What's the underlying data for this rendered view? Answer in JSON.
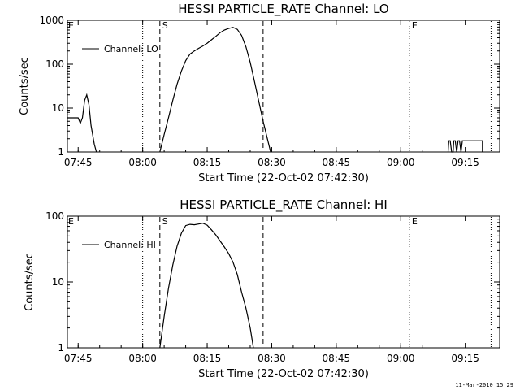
{
  "chart_data": [
    {
      "type": "line",
      "title": "HESSI PARTICLE_RATE Channel: LO",
      "xlabel": "Start Time (22-Oct-02 07:42:30)",
      "ylabel": "Counts/sec",
      "yscale": "log",
      "ylim": [
        1,
        1000
      ],
      "xlim": [
        "07:42:30",
        "09:23:00"
      ],
      "ytick_values": [
        1,
        10,
        100,
        1000
      ],
      "ytick_labels": [
        "1",
        "10",
        "100",
        "1000"
      ],
      "xtick_labels": [
        "07:45",
        "08:00",
        "08:15",
        "08:30",
        "08:45",
        "09:00",
        "09:15"
      ],
      "legend": {
        "label": "Channel: LO",
        "position": "top-left"
      },
      "markers": [
        {
          "time": "08:00",
          "style": "dotted",
          "label": ""
        },
        {
          "time": "08:04",
          "style": "dashed",
          "label": "S"
        },
        {
          "time": "08:28",
          "style": "dashed",
          "label": ""
        },
        {
          "time": "09:02",
          "style": "dotted",
          "label": "E"
        },
        {
          "time": "09:21",
          "style": "dotted",
          "label": ""
        }
      ],
      "corner_label": "E",
      "series": [
        {
          "x": [
            "07:42:30",
            "07:44:00",
            "07:45:00",
            "07:45:30",
            "07:46:00",
            "07:46:30",
            "07:47:00",
            "07:47:30",
            "07:48:00",
            "07:48:45",
            "07:49:15"
          ],
          "y": [
            6,
            6,
            6,
            4.5,
            6,
            15,
            20,
            12,
            4,
            1.5,
            1
          ]
        },
        {
          "x": [
            "08:04:00",
            "08:05:00",
            "08:06:00",
            "08:07:00",
            "08:08:00",
            "08:09:00",
            "08:10:00",
            "08:11:00",
            "08:12:00",
            "08:13:00",
            "08:14:00",
            "08:15:00",
            "08:16:00",
            "08:17:00",
            "08:18:00",
            "08:19:00",
            "08:20:00",
            "08:21:00",
            "08:22:00",
            "08:23:00",
            "08:24:00",
            "08:25:00",
            "08:26:00",
            "08:27:00",
            "08:28:00",
            "08:29:00",
            "08:29:45"
          ],
          "y": [
            1,
            2.5,
            6,
            15,
            35,
            70,
            120,
            170,
            200,
            230,
            260,
            300,
            360,
            430,
            520,
            600,
            650,
            690,
            620,
            450,
            250,
            110,
            40,
            14,
            5,
            2,
            1
          ]
        },
        {
          "x": [
            "09:11:00",
            "09:11:10",
            "09:11:30",
            "09:11:50",
            "09:12:10",
            "09:12:20",
            "09:12:40",
            "09:13:00",
            "09:13:20",
            "09:13:40",
            "09:14:00",
            "09:14:20",
            "09:14:40",
            "09:15:00",
            "09:17:00",
            "09:19:00",
            "09:19:00"
          ],
          "y": [
            1,
            1.8,
            1.8,
            1,
            1,
            1.8,
            1.8,
            1,
            1.8,
            1.8,
            1,
            1.8,
            1.8,
            1.8,
            1.8,
            1.8,
            1
          ]
        }
      ]
    },
    {
      "type": "line",
      "title": "HESSI PARTICLE_RATE Channel: HI",
      "xlabel": "Start Time (22-Oct-02 07:42:30)",
      "ylabel": "Counts/sec",
      "yscale": "log",
      "ylim": [
        1,
        100
      ],
      "xlim": [
        "07:42:30",
        "09:23:00"
      ],
      "ytick_values": [
        1,
        10,
        100
      ],
      "ytick_labels": [
        "1",
        "10",
        "100"
      ],
      "xtick_labels": [
        "07:45",
        "08:00",
        "08:15",
        "08:30",
        "08:45",
        "09:00",
        "09:15"
      ],
      "legend": {
        "label": "Channel: HI",
        "position": "top-left"
      },
      "markers": [
        {
          "time": "08:00",
          "style": "dotted",
          "label": ""
        },
        {
          "time": "08:04",
          "style": "dashed",
          "label": "S"
        },
        {
          "time": "08:28",
          "style": "dashed",
          "label": ""
        },
        {
          "time": "09:02",
          "style": "dotted",
          "label": "E"
        },
        {
          "time": "09:21",
          "style": "dotted",
          "label": ""
        }
      ],
      "corner_label": "E",
      "series": [
        {
          "x": [
            "08:04:00",
            "08:05:00",
            "08:06:00",
            "08:07:00",
            "08:08:00",
            "08:09:00",
            "08:10:00",
            "08:11:00",
            "08:12:00",
            "08:13:00",
            "08:14:00",
            "08:15:00",
            "08:16:00",
            "08:17:00",
            "08:18:00",
            "08:19:00",
            "08:20:00",
            "08:21:00",
            "08:22:00",
            "08:23:00",
            "08:24:00",
            "08:25:00",
            "08:25:45"
          ],
          "y": [
            1,
            3,
            8,
            18,
            35,
            55,
            72,
            75,
            74,
            76,
            78,
            73,
            62,
            52,
            42,
            34,
            27,
            20,
            13,
            7,
            4,
            2,
            1
          ]
        }
      ]
    }
  ],
  "footer": {
    "timestamp": "11-Mar-2010 15:29"
  }
}
